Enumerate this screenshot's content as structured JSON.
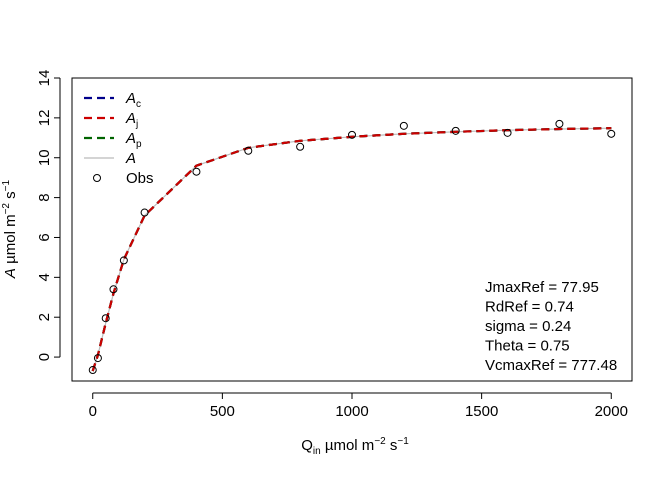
{
  "chart_data": {
    "type": "line",
    "xlabel": {
      "main": "Q",
      "sub": "in",
      "unit": " µmol m",
      "exp1": "−2",
      "unit2": " s",
      "exp2": "−1"
    },
    "ylabel": {
      "main": "A",
      "unit": " µmol m",
      "exp1": "−2",
      "unit2": " s",
      "exp2": "−1"
    },
    "xlim": [
      -80,
      2080
    ],
    "ylim": [
      -1.2,
      14
    ],
    "xticks": [
      0,
      500,
      1000,
      1500,
      2000
    ],
    "yticks": [
      0,
      2,
      4,
      6,
      8,
      10,
      12,
      14
    ],
    "grid": false,
    "legend_position": "top-left",
    "legend": [
      {
        "main": "A",
        "sub": "c",
        "color": "#00008b",
        "style": "dashed",
        "kind": "line"
      },
      {
        "main": "A",
        "sub": "j",
        "color": "#cc0000",
        "style": "dashed",
        "kind": "line"
      },
      {
        "main": "A",
        "sub": "p",
        "color": "#006400",
        "style": "dashed",
        "kind": "line"
      },
      {
        "main": "A",
        "sub": "",
        "color": "#bbbbbb",
        "style": "solid",
        "kind": "line"
      },
      {
        "main": "Obs",
        "sub": "",
        "color": "#000000",
        "style": "none",
        "kind": "point"
      }
    ],
    "series": [
      {
        "name": "A_j",
        "color": "#cc0000",
        "x": [
          0,
          20,
          50,
          80,
          120,
          200,
          400,
          600,
          800,
          1000,
          1200,
          1400,
          1600,
          1800,
          2000
        ],
        "y": [
          -0.7,
          0.1,
          1.7,
          3.2,
          4.9,
          7.1,
          9.6,
          10.5,
          10.85,
          11.05,
          11.2,
          11.3,
          11.38,
          11.44,
          11.48
        ]
      }
    ],
    "observations": {
      "x": [
        0,
        20,
        50,
        80,
        120,
        200,
        400,
        600,
        800,
        1000,
        1200,
        1400,
        1600,
        1800,
        2000
      ],
      "y": [
        -0.65,
        -0.05,
        1.95,
        3.4,
        4.85,
        7.25,
        9.3,
        10.35,
        10.55,
        11.15,
        11.6,
        11.35,
        11.25,
        11.7,
        11.2
      ]
    },
    "annotations": [
      "JmaxRef = 77.95",
      "RdRef = 0.74",
      "sigma = 0.24",
      "Theta = 0.75",
      "VcmaxRef = 777.48"
    ]
  }
}
